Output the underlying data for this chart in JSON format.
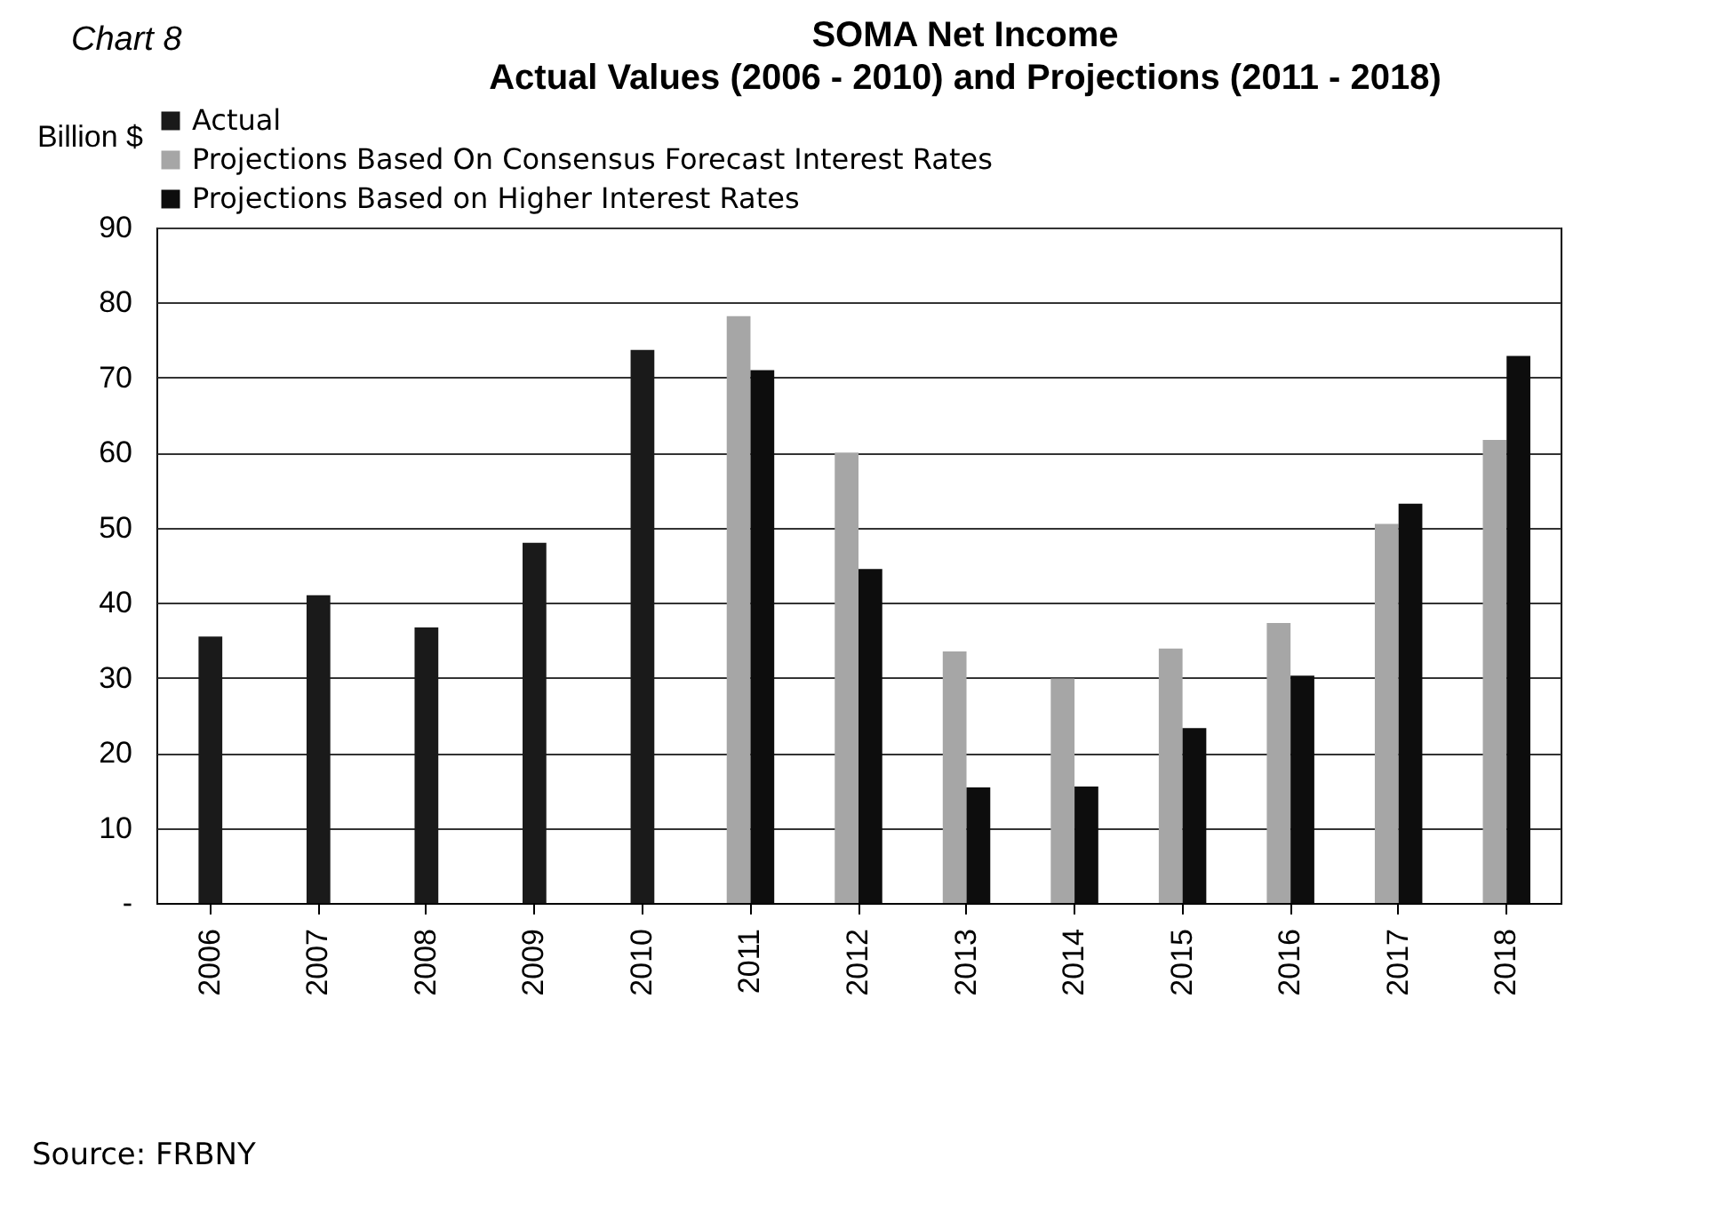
{
  "chart_data": {
    "type": "bar",
    "title": "SOMA Net Income",
    "subtitle": "Actual Values (2006 - 2010) and Projections (2011 - 2018)",
    "ylabel": "Billion $",
    "annotations": [
      "Chart 8",
      "Source: FRBNY"
    ],
    "categories": [
      "2006",
      "2007",
      "2008",
      "2009",
      "2010",
      "2011",
      "2012",
      "2013",
      "2014",
      "2015",
      "2016",
      "2017",
      "2018"
    ],
    "series": [
      {
        "name": "Actual",
        "color": "#1a1a1a",
        "values": [
          35.5,
          41,
          36.7,
          48,
          73.7,
          null,
          null,
          null,
          null,
          null,
          null,
          null,
          null
        ]
      },
      {
        "name": "Projections Based On Consensus Forecast Interest Rates",
        "color": "#a6a6a6",
        "values": [
          null,
          null,
          null,
          null,
          null,
          78.2,
          60,
          33.5,
          29.9,
          33.9,
          37.3,
          50.5,
          61.7
        ]
      },
      {
        "name": "Projections Based on Higher Interest Rates",
        "color": "#0d0d0d",
        "values": [
          null,
          null,
          null,
          null,
          null,
          71,
          44.5,
          15.4,
          15.5,
          23.3,
          30.3,
          53.2,
          72.9
        ]
      }
    ],
    "ylim": [
      0,
      90
    ],
    "yticks": [
      {
        "value": 0,
        "label": "-"
      },
      10,
      20,
      30,
      40,
      50,
      60,
      70,
      80,
      90
    ],
    "grid": "y",
    "legend": "top left"
  }
}
